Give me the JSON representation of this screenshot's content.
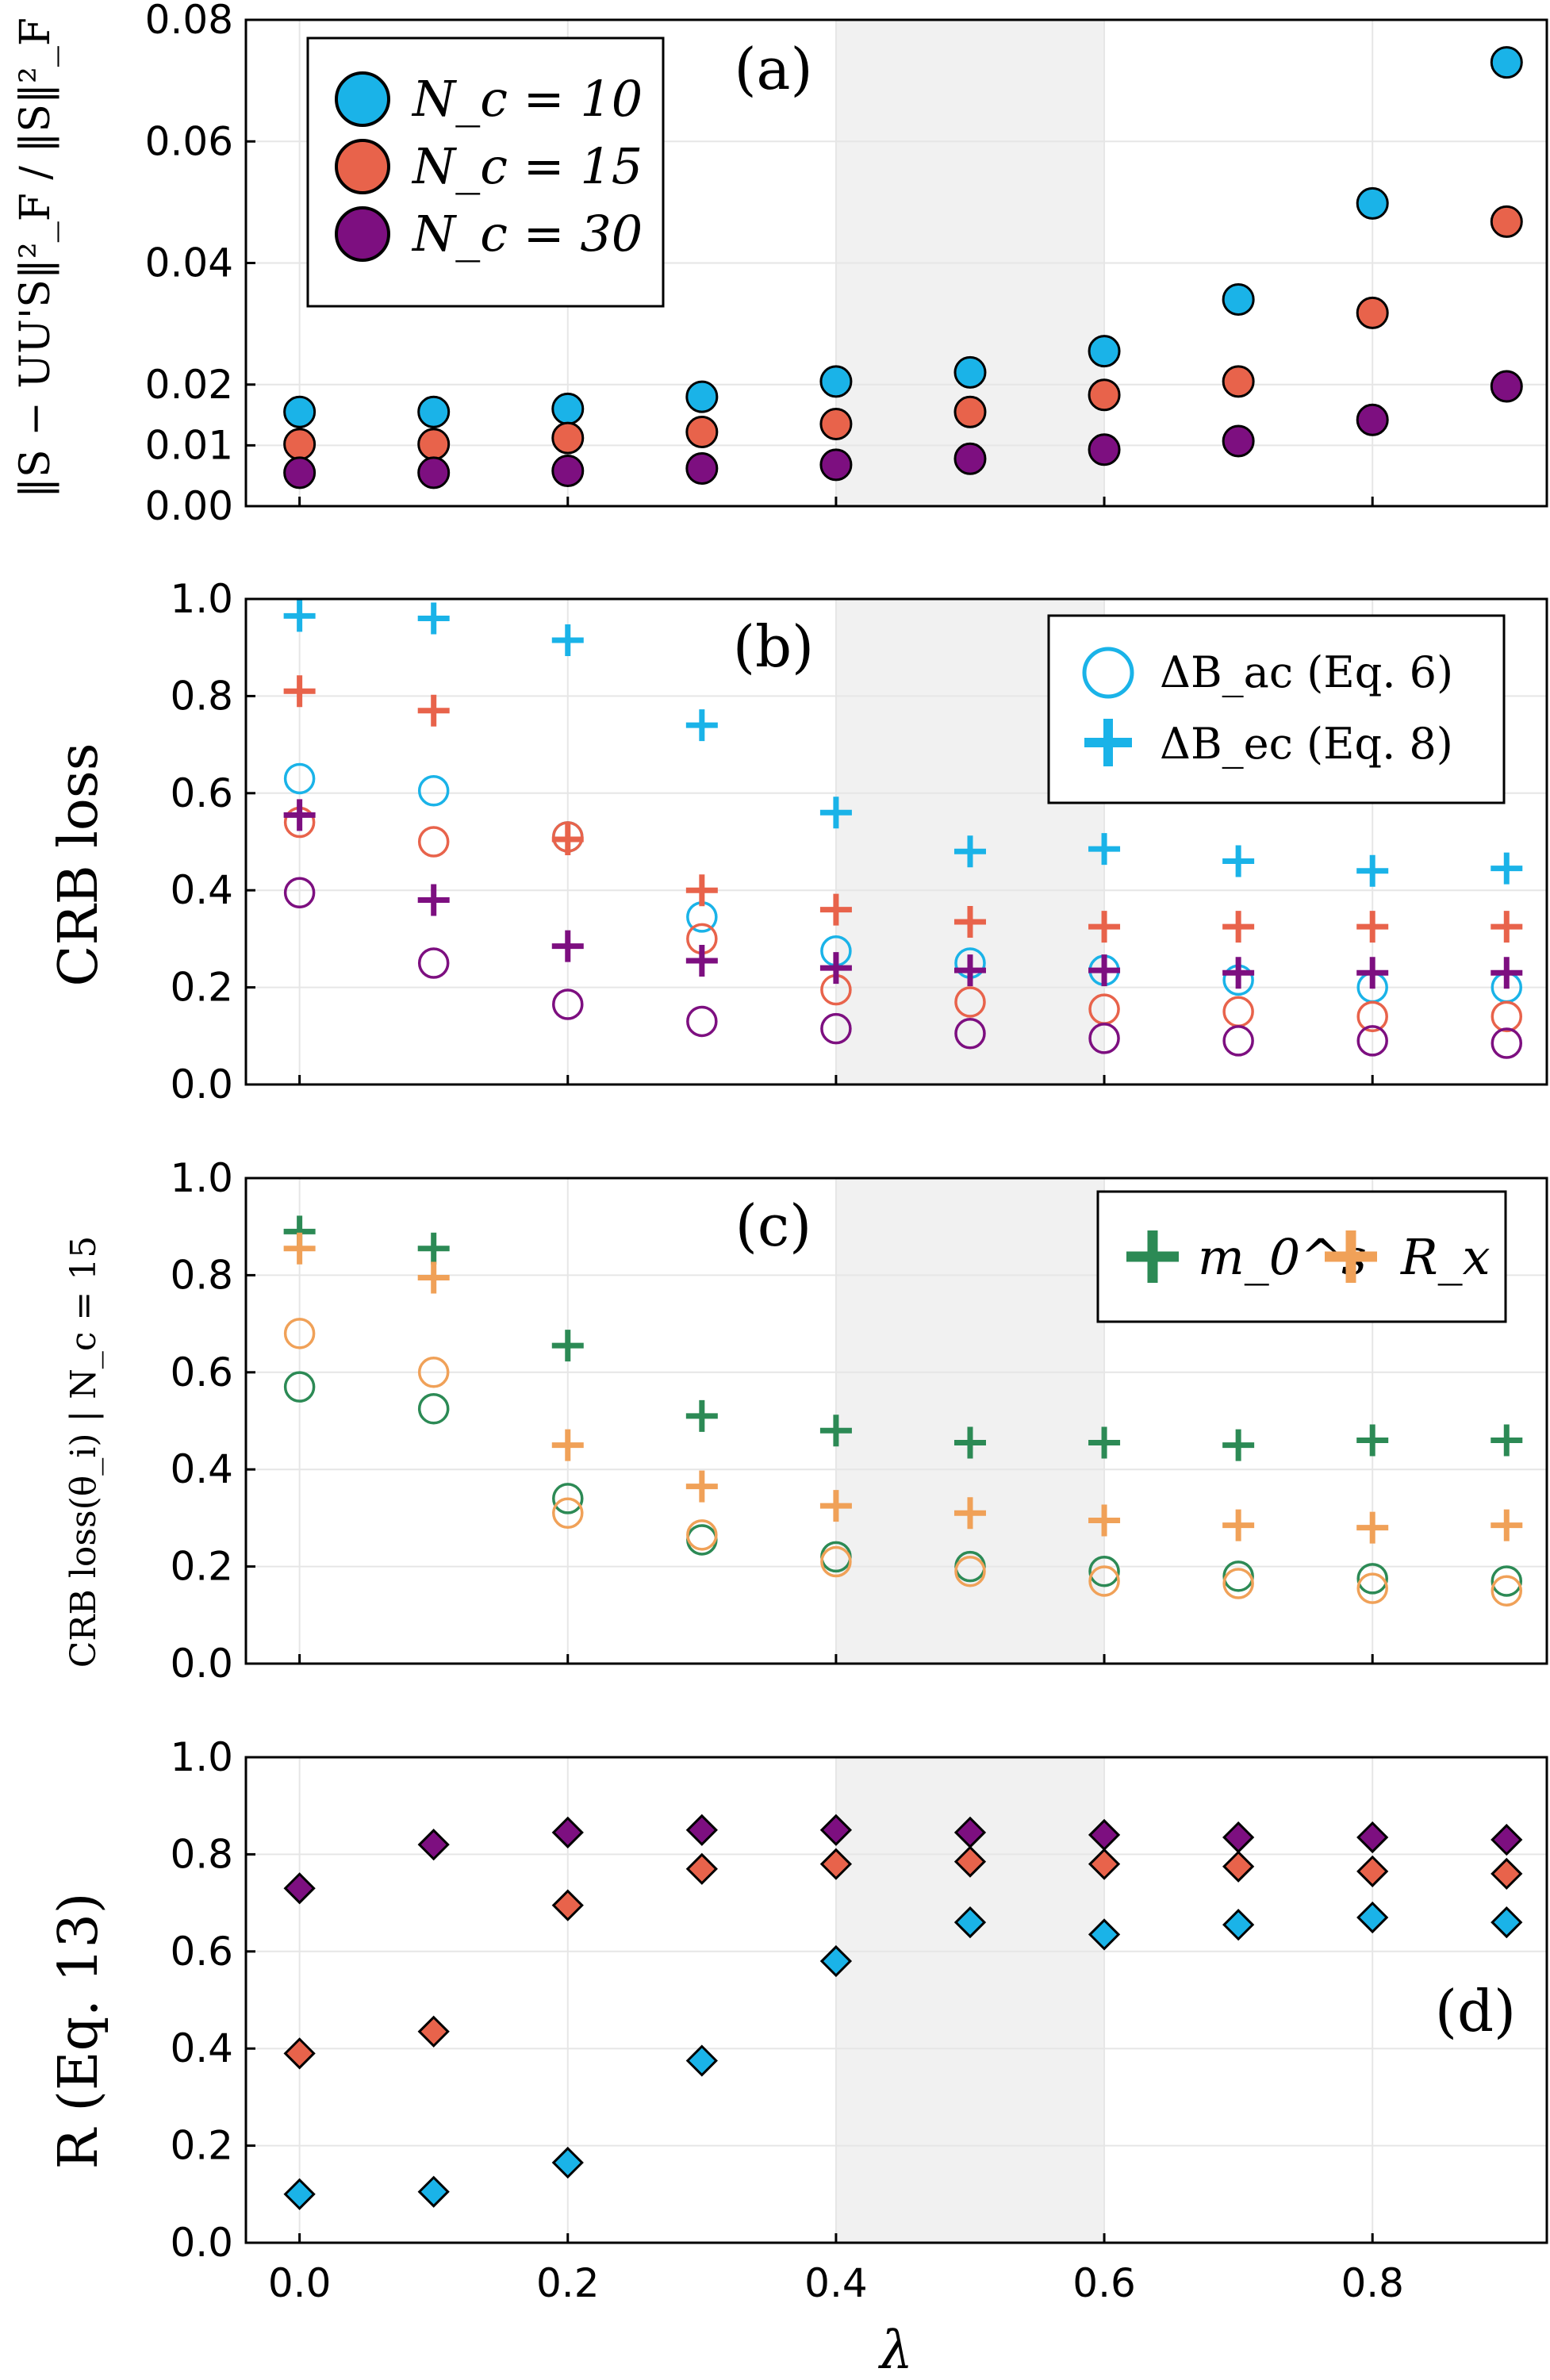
{
  "colors": {
    "nc10": "#1ab3e8",
    "nc15": "#e8634b",
    "nc30": "#7d0f80",
    "m0s": "#2c8a55",
    "Rx": "#f0a158",
    "shade": "#f1f1f1",
    "grid": "#e6e6e6"
  },
  "x_axis": {
    "label": "λ",
    "ticks": [
      "0.0",
      "0.2",
      "0.4",
      "0.6",
      "0.8"
    ],
    "range": [
      -0.04,
      0.93
    ],
    "shaded_region": [
      0.4,
      0.6
    ]
  },
  "chart_data": [
    {
      "id": "a",
      "type": "scatter",
      "panel_label": "(a)",
      "ylabel": "‖S − UU'S‖²_F / ‖S‖²_F",
      "ylim": [
        0,
        0.08
      ],
      "yticks": [
        "0.00",
        "0.01",
        "0.02",
        "0.04",
        "0.06",
        "0.08"
      ],
      "ytick_values": [
        0,
        0.01,
        0.02,
        0.04,
        0.06,
        0.08
      ],
      "x": [
        0,
        0.1,
        0.2,
        0.3,
        0.4,
        0.5,
        0.6,
        0.7,
        0.8,
        0.9
      ],
      "legend": [
        "N_c = 10",
        "N_c = 15",
        "N_c = 30"
      ],
      "series": [
        {
          "name": "N_c = 10",
          "color_key": "nc10",
          "marker": "filled-circle",
          "values": [
            0.0155,
            0.0155,
            0.016,
            0.018,
            0.0205,
            0.022,
            0.0255,
            0.034,
            0.0498,
            0.073
          ]
        },
        {
          "name": "N_c = 15",
          "color_key": "nc15",
          "marker": "filled-circle",
          "values": [
            0.0102,
            0.0102,
            0.0112,
            0.0122,
            0.0135,
            0.0155,
            0.0183,
            0.0205,
            0.0318,
            0.0468
          ]
        },
        {
          "name": "N_c = 30",
          "color_key": "nc30",
          "marker": "filled-circle",
          "values": [
            0.0055,
            0.0055,
            0.0058,
            0.0062,
            0.0068,
            0.0078,
            0.0093,
            0.0107,
            0.0142,
            0.0197
          ]
        }
      ]
    },
    {
      "id": "b",
      "type": "scatter",
      "panel_label": "(b)",
      "ylabel": "CRB loss",
      "ylim": [
        0,
        1
      ],
      "yticks": [
        "0.0",
        "0.2",
        "0.4",
        "0.6",
        "0.8",
        "1.0"
      ],
      "ytick_values": [
        0,
        0.2,
        0.4,
        0.6,
        0.8,
        1.0
      ],
      "x": [
        0,
        0.1,
        0.2,
        0.3,
        0.4,
        0.5,
        0.6,
        0.7,
        0.8,
        0.9
      ],
      "legend": [
        "ΔB_ac (Eq. 6)",
        "ΔB_ec (Eq. 8)"
      ],
      "series": [
        {
          "name": "ΔB_ac N_c=10",
          "color_key": "nc10",
          "marker": "open-circle",
          "values": [
            0.63,
            0.605,
            0.51,
            0.345,
            0.275,
            0.25,
            0.235,
            0.215,
            0.2,
            0.2
          ]
        },
        {
          "name": "ΔB_ac N_c=15",
          "color_key": "nc15",
          "marker": "open-circle",
          "values": [
            0.54,
            0.5,
            0.51,
            0.3,
            0.195,
            0.17,
            0.155,
            0.15,
            0.14,
            0.14
          ]
        },
        {
          "name": "ΔB_ac N_c=30",
          "color_key": "nc30",
          "marker": "open-circle",
          "values": [
            0.395,
            0.25,
            0.165,
            0.13,
            0.115,
            0.105,
            0.095,
            0.09,
            0.09,
            0.085
          ]
        },
        {
          "name": "ΔB_ec N_c=10",
          "color_key": "nc10",
          "marker": "plus",
          "values": [
            0.965,
            0.96,
            0.915,
            0.74,
            0.56,
            0.48,
            0.485,
            0.46,
            0.44,
            0.445
          ]
        },
        {
          "name": "ΔB_ec N_c=15",
          "color_key": "nc15",
          "marker": "plus",
          "values": [
            0.81,
            0.77,
            0.505,
            0.4,
            0.36,
            0.335,
            0.325,
            0.325,
            0.325,
            0.325
          ]
        },
        {
          "name": "ΔB_ec N_c=30",
          "color_key": "nc30",
          "marker": "plus",
          "values": [
            0.555,
            0.38,
            0.285,
            0.255,
            0.24,
            0.235,
            0.235,
            0.23,
            0.23,
            0.23
          ]
        }
      ]
    },
    {
      "id": "c",
      "type": "scatter",
      "panel_label": "(c)",
      "ylabel": "CRB loss(θ_i) | N_c = 15",
      "ylim": [
        0,
        1
      ],
      "yticks": [
        "0.0",
        "0.2",
        "0.4",
        "0.6",
        "0.8",
        "1.0"
      ],
      "ytick_values": [
        0,
        0.2,
        0.4,
        0.6,
        0.8,
        1.0
      ],
      "x": [
        0,
        0.1,
        0.2,
        0.3,
        0.4,
        0.5,
        0.6,
        0.7,
        0.8,
        0.9
      ],
      "legend": [
        "m_0^s",
        "R_x"
      ],
      "series": [
        {
          "name": "m0s open",
          "color_key": "m0s",
          "marker": "open-circle",
          "values": [
            0.57,
            0.525,
            0.34,
            0.255,
            0.22,
            0.2,
            0.19,
            0.18,
            0.175,
            0.17
          ]
        },
        {
          "name": "Rx open",
          "color_key": "Rx",
          "marker": "open-circle",
          "values": [
            0.68,
            0.6,
            0.31,
            0.265,
            0.21,
            0.19,
            0.17,
            0.165,
            0.155,
            0.15
          ]
        },
        {
          "name": "m0s plus",
          "color_key": "m0s",
          "marker": "plus",
          "values": [
            0.89,
            0.855,
            0.655,
            0.51,
            0.48,
            0.455,
            0.455,
            0.45,
            0.46,
            0.46
          ]
        },
        {
          "name": "Rx plus",
          "color_key": "Rx",
          "marker": "plus",
          "values": [
            0.855,
            0.795,
            0.45,
            0.365,
            0.325,
            0.31,
            0.295,
            0.285,
            0.28,
            0.285
          ]
        }
      ]
    },
    {
      "id": "d",
      "type": "scatter",
      "panel_label": "(d)",
      "ylabel": "R (Eq. 13)",
      "ylim": [
        0,
        1
      ],
      "yticks": [
        "0.0",
        "0.2",
        "0.4",
        "0.6",
        "0.8",
        "1.0"
      ],
      "ytick_values": [
        0,
        0.2,
        0.4,
        0.6,
        0.8,
        1.0
      ],
      "x": [
        0,
        0.1,
        0.2,
        0.3,
        0.4,
        0.5,
        0.6,
        0.7,
        0.8,
        0.9
      ],
      "series": [
        {
          "name": "N_c = 10",
          "color_key": "nc10",
          "marker": "diamond",
          "values": [
            0.1,
            0.105,
            0.165,
            0.375,
            0.58,
            0.66,
            0.635,
            0.655,
            0.67,
            0.66
          ]
        },
        {
          "name": "N_c = 15",
          "color_key": "nc15",
          "marker": "diamond",
          "values": [
            0.39,
            0.435,
            0.695,
            0.77,
            0.78,
            0.785,
            0.78,
            0.775,
            0.765,
            0.76
          ]
        },
        {
          "name": "N_c = 30",
          "color_key": "nc30",
          "marker": "diamond",
          "values": [
            0.73,
            0.82,
            0.845,
            0.85,
            0.85,
            0.845,
            0.84,
            0.835,
            0.835,
            0.83
          ]
        }
      ]
    }
  ]
}
